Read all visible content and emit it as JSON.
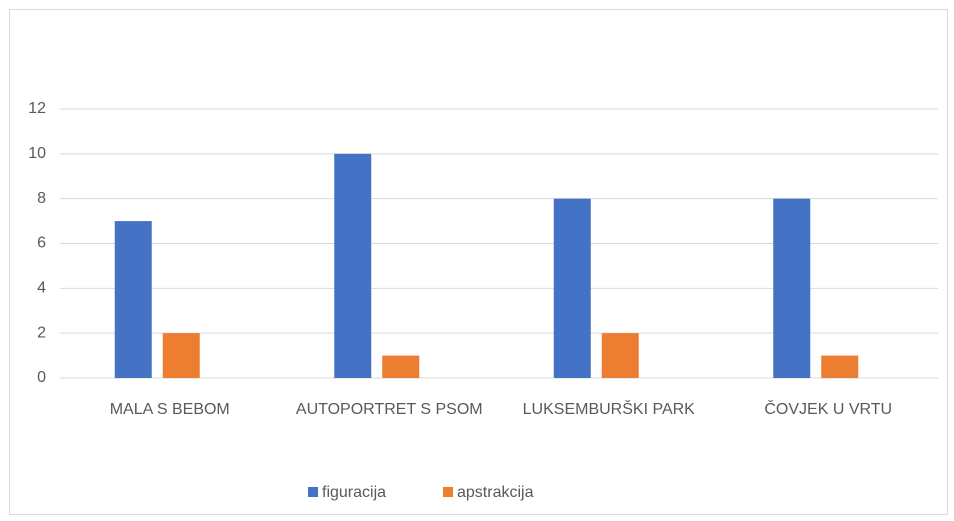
{
  "chart_data": {
    "type": "bar",
    "categories": [
      "MALA S BEBOM",
      "AUTOPORTRET S PSOM",
      "LUKSEMBURŠKI PARK",
      "ČOVJEK U VRTU"
    ],
    "series": [
      {
        "name": "figuracija",
        "color": "#4472c4",
        "values": [
          7,
          10,
          8,
          8
        ]
      },
      {
        "name": "apstrakcija",
        "color": "#ed7d31",
        "values": [
          2,
          1,
          2,
          1
        ]
      }
    ],
    "ylim": [
      0,
      12
    ],
    "yticks": [
      0,
      2,
      4,
      6,
      8,
      10,
      12
    ],
    "grid": true,
    "legend": "bottom"
  }
}
